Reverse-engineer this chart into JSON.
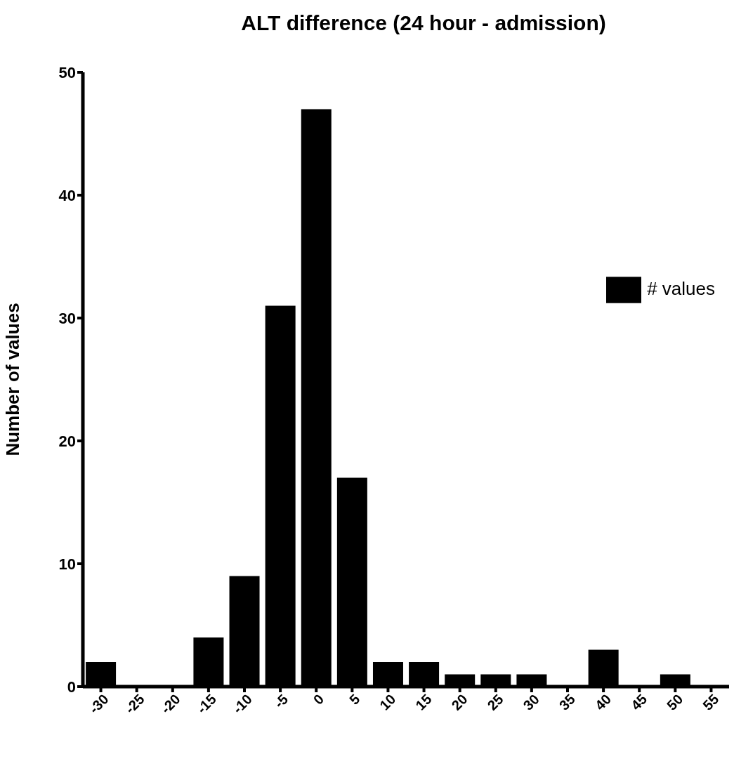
{
  "chart_data": {
    "type": "bar",
    "title": "ALT difference (24 hour - admission)",
    "ylabel": "Number of values",
    "categories": [
      "-30",
      "-25",
      "-20",
      "-15",
      "-10",
      "-5",
      "0",
      "5",
      "10",
      "15",
      "20",
      "25",
      "30",
      "35",
      "40",
      "45",
      "50",
      "55"
    ],
    "series": [
      {
        "name": "# values",
        "color": "#000000",
        "values": [
          2,
          0,
          0,
          4,
          9,
          31,
          47,
          17,
          2,
          2,
          1,
          1,
          1,
          0,
          3,
          0,
          1,
          0
        ]
      }
    ],
    "ylim": [
      0,
      50
    ],
    "yticks": [
      0,
      10,
      20,
      30,
      40,
      50
    ],
    "grid": false,
    "legend": "right"
  }
}
